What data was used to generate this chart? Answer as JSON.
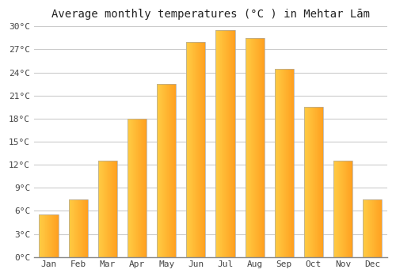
{
  "title": "Average monthly temperatures (°C ) in Mehtar Lām",
  "months": [
    "Jan",
    "Feb",
    "Mar",
    "Apr",
    "May",
    "Jun",
    "Jul",
    "Aug",
    "Sep",
    "Oct",
    "Nov",
    "Dec"
  ],
  "values": [
    5.5,
    7.5,
    12.5,
    18.0,
    22.5,
    28.0,
    29.5,
    28.5,
    24.5,
    19.5,
    12.5,
    7.5
  ],
  "bar_color_left": "#FFCC44",
  "bar_color_right": "#FFA020",
  "bar_edge_color": "#aaaaaa",
  "bar_edge_width": 0.5,
  "ylim": [
    0,
    30
  ],
  "yticks": [
    0,
    3,
    6,
    9,
    12,
    15,
    18,
    21,
    24,
    27,
    30
  ],
  "ytick_labels": [
    "0°C",
    "3°C",
    "6°C",
    "9°C",
    "12°C",
    "15°C",
    "18°C",
    "21°C",
    "24°C",
    "27°C",
    "30°C"
  ],
  "background_color": "#ffffff",
  "grid_color": "#cccccc",
  "title_fontsize": 10,
  "tick_fontsize": 8,
  "bar_width": 0.65
}
